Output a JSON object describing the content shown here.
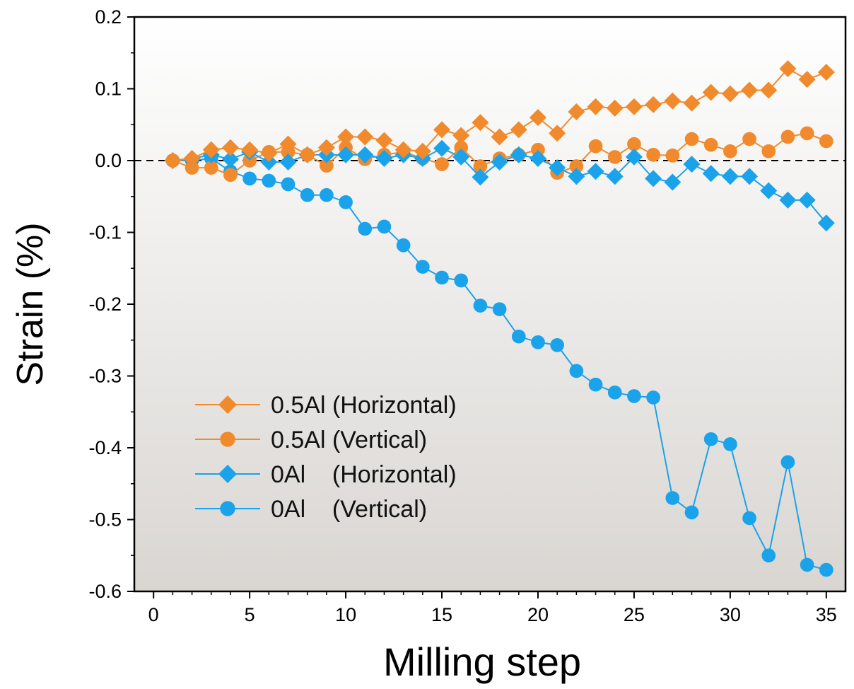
{
  "chart_data": {
    "type": "line",
    "title": "",
    "xlabel": "Milling step",
    "ylabel": "Strain (%)",
    "xlim": [
      -1,
      36
    ],
    "ylim": [
      -0.6,
      0.2
    ],
    "xticks": [
      0,
      5,
      10,
      15,
      20,
      25,
      30,
      35
    ],
    "xtick_labels": [
      "0",
      "5",
      "10",
      "15",
      "20",
      "25",
      "30",
      "35"
    ],
    "yticks": [
      0.2,
      0.1,
      0.0,
      -0.1,
      -0.2,
      -0.3,
      -0.4,
      -0.5,
      -0.6
    ],
    "ytick_labels": [
      "0.2",
      "0.1",
      "0.0",
      "-0.1",
      "-0.2",
      "-0.3",
      "-0.4",
      "-0.5",
      "-0.6"
    ],
    "reference_line": {
      "y": 0,
      "style": "dashed"
    },
    "grid": false,
    "legend_position": "lower-left",
    "background": "vertical gradient white to light gray",
    "x": [
      1,
      2,
      3,
      4,
      5,
      6,
      7,
      8,
      9,
      10,
      11,
      12,
      13,
      14,
      15,
      16,
      17,
      18,
      19,
      20,
      21,
      22,
      23,
      24,
      25,
      26,
      27,
      28,
      29,
      30,
      31,
      32,
      33,
      34,
      35
    ],
    "series": [
      {
        "name": "0.5Al (Horizontal)",
        "marker": "diamond",
        "color": "#F08A2C",
        "values": [
          0.0,
          0.003,
          0.015,
          0.018,
          0.015,
          0.01,
          0.023,
          0.008,
          0.018,
          0.033,
          0.033,
          0.028,
          0.015,
          0.013,
          0.043,
          0.035,
          0.053,
          0.033,
          0.043,
          0.06,
          0.038,
          0.068,
          0.075,
          0.073,
          0.075,
          0.078,
          0.083,
          0.08,
          0.095,
          0.093,
          0.098,
          0.098,
          0.128,
          0.113,
          0.123
        ]
      },
      {
        "name": "0.5Al (Vertical)",
        "marker": "circle",
        "color": "#F08A2C",
        "values": [
          0.0,
          -0.01,
          -0.01,
          -0.02,
          0.0,
          0.012,
          0.012,
          0.008,
          -0.007,
          0.018,
          0.002,
          0.008,
          0.012,
          0.003,
          -0.005,
          0.018,
          -0.008,
          0.003,
          0.008,
          0.015,
          -0.017,
          -0.008,
          0.02,
          0.005,
          0.023,
          0.008,
          0.007,
          0.03,
          0.022,
          0.013,
          0.03,
          0.013,
          0.033,
          0.038,
          0.027
        ]
      },
      {
        "name": "0Al    (Horizontal)",
        "marker": "diamond",
        "color": "#1AA3EA",
        "values": [
          0.0,
          0.003,
          0.008,
          0.002,
          0.012,
          -0.002,
          -0.002,
          0.008,
          0.008,
          0.008,
          0.008,
          0.003,
          0.008,
          0.003,
          0.017,
          0.005,
          -0.023,
          -0.002,
          0.008,
          0.003,
          -0.01,
          -0.022,
          -0.015,
          -0.022,
          0.005,
          -0.025,
          -0.03,
          -0.005,
          -0.018,
          -0.022,
          -0.022,
          -0.042,
          -0.055,
          -0.055,
          -0.087
        ]
      },
      {
        "name": "0Al    (Vertical)",
        "marker": "circle",
        "color": "#1AA3EA",
        "values": [
          0.0,
          0.0,
          0.003,
          -0.015,
          -0.025,
          -0.028,
          -0.033,
          -0.048,
          -0.048,
          -0.058,
          -0.095,
          -0.092,
          -0.118,
          -0.148,
          -0.163,
          -0.167,
          -0.202,
          -0.207,
          -0.245,
          -0.253,
          -0.257,
          -0.293,
          -0.312,
          -0.323,
          -0.328,
          -0.33,
          -0.47,
          -0.49,
          -0.388,
          -0.395,
          -0.498,
          -0.55,
          -0.42,
          -0.563,
          -0.57
        ]
      }
    ]
  }
}
